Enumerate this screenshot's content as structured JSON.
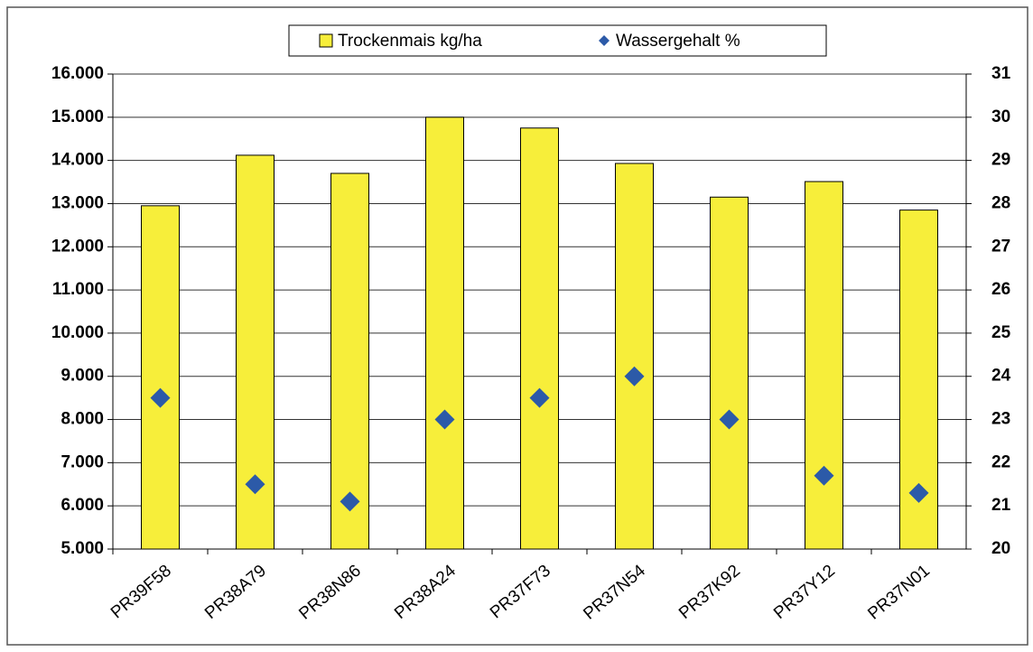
{
  "chart_data": {
    "type": "bar",
    "categories": [
      "PR39F58",
      "PR38A79",
      "PR38N86",
      "PR38A24",
      "PR37F73",
      "PR37N54",
      "PR37K92",
      "PR37Y12",
      "PR37N01"
    ],
    "series": [
      {
        "name": "Trockenmais kg/ha",
        "color": "#f7ee3a",
        "values": [
          12950,
          14120,
          13700,
          15000,
          14750,
          13930,
          13150,
          13510,
          12850
        ]
      },
      {
        "name": "Wassergehalt %",
        "color": "#2c5aa8",
        "axis": "y2",
        "type": "scatter",
        "values": [
          23.5,
          21.5,
          21.1,
          23,
          23.5,
          24,
          23,
          21.7,
          21.3
        ]
      }
    ],
    "ylim": [
      5000,
      16000
    ],
    "yticks": [
      {
        "value": 5000,
        "label": "5.000"
      },
      {
        "value": 6000,
        "label": "6.000"
      },
      {
        "value": 7000,
        "label": "7.000"
      },
      {
        "value": 8000,
        "label": "8.000"
      },
      {
        "value": 9000,
        "label": "9.000"
      },
      {
        "value": 10000,
        "label": "10.000"
      },
      {
        "value": 11000,
        "label": "11.000"
      },
      {
        "value": 12000,
        "label": "12.000"
      },
      {
        "value": 13000,
        "label": "13.000"
      },
      {
        "value": 14000,
        "label": "14.000"
      },
      {
        "value": 15000,
        "label": "15.000"
      },
      {
        "value": 16000,
        "label": "16.000"
      }
    ],
    "y2lim": [
      20,
      31
    ],
    "y2ticks": [
      20,
      21,
      22,
      23,
      24,
      25,
      26,
      27,
      28,
      29,
      30,
      31
    ],
    "grid": true,
    "legend": "top"
  }
}
